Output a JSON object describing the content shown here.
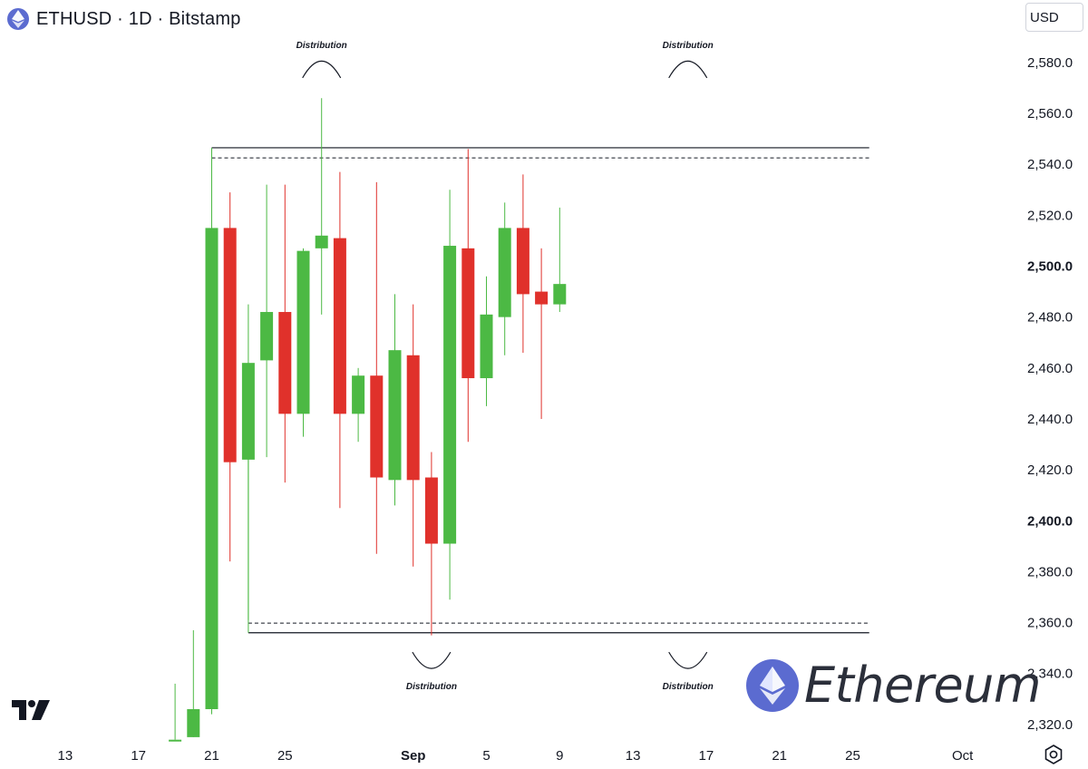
{
  "header": {
    "title": "ETHUSD · 1D · Bitstamp",
    "currency": "USD"
  },
  "brand": {
    "text": "Ethereum"
  },
  "icons": {
    "symbol_logo": "ethereum-icon",
    "tradingview_logo": "tradingview-logo",
    "settings": "settings-icon",
    "brand_logo": "ethereum-icon"
  },
  "colors": {
    "up": "#4cb944",
    "down": "#e0312b",
    "accent": "#5b6bd0"
  },
  "chart_data": {
    "type": "candlestick",
    "y_axis_ticks": [
      "2,320.0",
      "2,340.0",
      "2,360.0",
      "2,380.0",
      "2,400.0",
      "2,420.0",
      "2,440.0",
      "2,460.0",
      "2,480.0",
      "2,500.0",
      "2,520.0",
      "2,540.0",
      "2,560.0",
      "2,580.0"
    ],
    "y_axis_bold": [
      "2,400.0",
      "2,500.0"
    ],
    "ylim": [
      2315,
      2593
    ],
    "x_axis_ticks": [
      {
        "label": "13",
        "day": 13
      },
      {
        "label": "17",
        "day": 17
      },
      {
        "label": "21",
        "day": 21
      },
      {
        "label": "25",
        "day": 25
      },
      {
        "label": "Sep",
        "day": 32,
        "bold": true
      },
      {
        "label": "5",
        "day": 36
      },
      {
        "label": "9",
        "day": 40
      },
      {
        "label": "13",
        "day": 44
      },
      {
        "label": "17",
        "day": 48
      },
      {
        "label": "21",
        "day": 52
      },
      {
        "label": "25",
        "day": 56
      },
      {
        "label": "Oct",
        "day": 62
      }
    ],
    "candles": [
      {
        "day": 19,
        "open": 2314,
        "high": 2336,
        "low": 2314,
        "close": 2314
      },
      {
        "day": 20,
        "open": 2315,
        "high": 2357,
        "low": 2315,
        "close": 2326
      },
      {
        "day": 21,
        "open": 2326,
        "high": 2546,
        "low": 2324,
        "close": 2515
      },
      {
        "day": 22,
        "open": 2515,
        "high": 2529,
        "low": 2384,
        "close": 2423
      },
      {
        "day": 23,
        "open": 2424,
        "high": 2485,
        "low": 2361,
        "close": 2462
      },
      {
        "day": 24,
        "open": 2463,
        "high": 2532,
        "low": 2425,
        "close": 2482
      },
      {
        "day": 25,
        "open": 2482,
        "high": 2532,
        "low": 2415,
        "close": 2442
      },
      {
        "day": 26,
        "open": 2442,
        "high": 2507,
        "low": 2433,
        "close": 2506
      },
      {
        "day": 27,
        "open": 2507,
        "high": 2566,
        "low": 2481,
        "close": 2512
      },
      {
        "day": 28,
        "open": 2511,
        "high": 2537,
        "low": 2405,
        "close": 2442
      },
      {
        "day": 29,
        "open": 2442,
        "high": 2460,
        "low": 2431,
        "close": 2457
      },
      {
        "day": 30,
        "open": 2457,
        "high": 2533,
        "low": 2387,
        "close": 2417
      },
      {
        "day": 31,
        "open": 2416,
        "high": 2489,
        "low": 2406,
        "close": 2467
      },
      {
        "day": 32,
        "open": 2465,
        "high": 2485,
        "low": 2382,
        "close": 2416
      },
      {
        "day": 33,
        "open": 2417,
        "high": 2427,
        "low": 2355,
        "close": 2391
      },
      {
        "day": 34,
        "open": 2391,
        "high": 2530,
        "low": 2369,
        "close": 2508
      },
      {
        "day": 35,
        "open": 2507,
        "high": 2546,
        "low": 2431,
        "close": 2456
      },
      {
        "day": 36,
        "open": 2456,
        "high": 2496,
        "low": 2445,
        "close": 2481
      },
      {
        "day": 37,
        "open": 2480,
        "high": 2525,
        "low": 2465,
        "close": 2515
      },
      {
        "day": 38,
        "open": 2515,
        "high": 2536,
        "low": 2466,
        "close": 2489
      },
      {
        "day": 39,
        "open": 2490,
        "high": 2507,
        "low": 2440,
        "close": 2485
      },
      {
        "day": 40,
        "open": 2485,
        "high": 2523,
        "low": 2482,
        "close": 2493
      }
    ],
    "levels": [
      {
        "name": "range-top-solid",
        "price": 2546.5,
        "style": "solid",
        "from_day": 21,
        "to_day": 57
      },
      {
        "name": "range-top-dashed",
        "price": 2542.5,
        "style": "dashed",
        "from_day": 21,
        "to_day": 57
      },
      {
        "name": "range-bottom-dashed",
        "price": 2359.8,
        "style": "dashed",
        "from_day": 23,
        "to_day": 57
      },
      {
        "name": "range-bottom-solid",
        "price": 2356.0,
        "style": "solid",
        "from_day": 23,
        "to_day": 57
      }
    ],
    "annotations": [
      {
        "text": "Distribution",
        "day": 27,
        "price": 2585,
        "arc": "top"
      },
      {
        "text": "Distribution",
        "day": 47,
        "price": 2585,
        "arc": "top"
      },
      {
        "text": "Distribution",
        "day": 33,
        "price": 2337,
        "arc": "bottom"
      },
      {
        "text": "Distribution",
        "day": 47,
        "price": 2337,
        "arc": "bottom"
      }
    ]
  }
}
